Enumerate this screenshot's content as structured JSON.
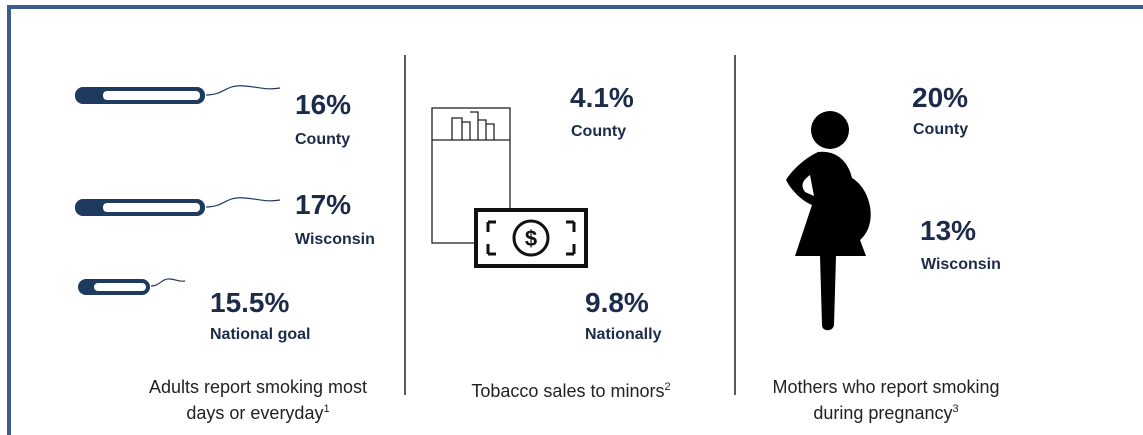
{
  "panels": [
    {
      "stats": [
        {
          "value": "16%",
          "label": "County"
        },
        {
          "value": "17%",
          "label": "Wisconsin"
        },
        {
          "value": "15.5%",
          "label": "National goal"
        }
      ],
      "caption_lines": [
        "Adults report smoking most",
        "days or everyday"
      ],
      "footnote": "1"
    },
    {
      "stats": [
        {
          "value": "4.1%",
          "label": "County"
        },
        {
          "value": "9.8%",
          "label": "Nationally"
        }
      ],
      "caption_lines": [
        "Tobacco sales to minors"
      ],
      "footnote": "2"
    },
    {
      "stats": [
        {
          "value": "20%",
          "label": "County"
        },
        {
          "value": "13%",
          "label": "Wisconsin"
        }
      ],
      "caption_lines": [
        "Mothers who report smoking",
        "during pregnancy"
      ],
      "footnote": "3"
    }
  ]
}
